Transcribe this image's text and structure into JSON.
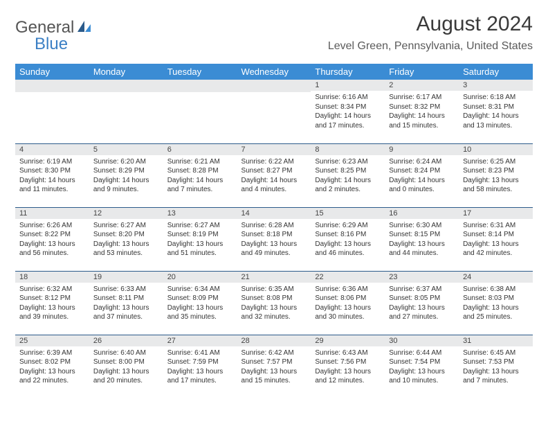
{
  "logo": {
    "general": "General",
    "blue": "Blue"
  },
  "title": "August 2024",
  "location": "Level Green, Pennsylvania, United States",
  "weekdays": [
    "Sunday",
    "Monday",
    "Tuesday",
    "Wednesday",
    "Thursday",
    "Friday",
    "Saturday"
  ],
  "colors": {
    "header_bg": "#3b8cd4",
    "header_text": "#ffffff",
    "daynum_bg": "#e8e9ea",
    "border": "#2a5a8a",
    "brand_blue": "#3b7fc4"
  },
  "weeks": [
    [
      null,
      null,
      null,
      null,
      {
        "n": "1",
        "sr": "Sunrise: 6:16 AM",
        "ss": "Sunset: 8:34 PM",
        "dl1": "Daylight: 14 hours",
        "dl2": "and 17 minutes."
      },
      {
        "n": "2",
        "sr": "Sunrise: 6:17 AM",
        "ss": "Sunset: 8:32 PM",
        "dl1": "Daylight: 14 hours",
        "dl2": "and 15 minutes."
      },
      {
        "n": "3",
        "sr": "Sunrise: 6:18 AM",
        "ss": "Sunset: 8:31 PM",
        "dl1": "Daylight: 14 hours",
        "dl2": "and 13 minutes."
      }
    ],
    [
      {
        "n": "4",
        "sr": "Sunrise: 6:19 AM",
        "ss": "Sunset: 8:30 PM",
        "dl1": "Daylight: 14 hours",
        "dl2": "and 11 minutes."
      },
      {
        "n": "5",
        "sr": "Sunrise: 6:20 AM",
        "ss": "Sunset: 8:29 PM",
        "dl1": "Daylight: 14 hours",
        "dl2": "and 9 minutes."
      },
      {
        "n": "6",
        "sr": "Sunrise: 6:21 AM",
        "ss": "Sunset: 8:28 PM",
        "dl1": "Daylight: 14 hours",
        "dl2": "and 7 minutes."
      },
      {
        "n": "7",
        "sr": "Sunrise: 6:22 AM",
        "ss": "Sunset: 8:27 PM",
        "dl1": "Daylight: 14 hours",
        "dl2": "and 4 minutes."
      },
      {
        "n": "8",
        "sr": "Sunrise: 6:23 AM",
        "ss": "Sunset: 8:25 PM",
        "dl1": "Daylight: 14 hours",
        "dl2": "and 2 minutes."
      },
      {
        "n": "9",
        "sr": "Sunrise: 6:24 AM",
        "ss": "Sunset: 8:24 PM",
        "dl1": "Daylight: 14 hours",
        "dl2": "and 0 minutes."
      },
      {
        "n": "10",
        "sr": "Sunrise: 6:25 AM",
        "ss": "Sunset: 8:23 PM",
        "dl1": "Daylight: 13 hours",
        "dl2": "and 58 minutes."
      }
    ],
    [
      {
        "n": "11",
        "sr": "Sunrise: 6:26 AM",
        "ss": "Sunset: 8:22 PM",
        "dl1": "Daylight: 13 hours",
        "dl2": "and 56 minutes."
      },
      {
        "n": "12",
        "sr": "Sunrise: 6:27 AM",
        "ss": "Sunset: 8:20 PM",
        "dl1": "Daylight: 13 hours",
        "dl2": "and 53 minutes."
      },
      {
        "n": "13",
        "sr": "Sunrise: 6:27 AM",
        "ss": "Sunset: 8:19 PM",
        "dl1": "Daylight: 13 hours",
        "dl2": "and 51 minutes."
      },
      {
        "n": "14",
        "sr": "Sunrise: 6:28 AM",
        "ss": "Sunset: 8:18 PM",
        "dl1": "Daylight: 13 hours",
        "dl2": "and 49 minutes."
      },
      {
        "n": "15",
        "sr": "Sunrise: 6:29 AM",
        "ss": "Sunset: 8:16 PM",
        "dl1": "Daylight: 13 hours",
        "dl2": "and 46 minutes."
      },
      {
        "n": "16",
        "sr": "Sunrise: 6:30 AM",
        "ss": "Sunset: 8:15 PM",
        "dl1": "Daylight: 13 hours",
        "dl2": "and 44 minutes."
      },
      {
        "n": "17",
        "sr": "Sunrise: 6:31 AM",
        "ss": "Sunset: 8:14 PM",
        "dl1": "Daylight: 13 hours",
        "dl2": "and 42 minutes."
      }
    ],
    [
      {
        "n": "18",
        "sr": "Sunrise: 6:32 AM",
        "ss": "Sunset: 8:12 PM",
        "dl1": "Daylight: 13 hours",
        "dl2": "and 39 minutes."
      },
      {
        "n": "19",
        "sr": "Sunrise: 6:33 AM",
        "ss": "Sunset: 8:11 PM",
        "dl1": "Daylight: 13 hours",
        "dl2": "and 37 minutes."
      },
      {
        "n": "20",
        "sr": "Sunrise: 6:34 AM",
        "ss": "Sunset: 8:09 PM",
        "dl1": "Daylight: 13 hours",
        "dl2": "and 35 minutes."
      },
      {
        "n": "21",
        "sr": "Sunrise: 6:35 AM",
        "ss": "Sunset: 8:08 PM",
        "dl1": "Daylight: 13 hours",
        "dl2": "and 32 minutes."
      },
      {
        "n": "22",
        "sr": "Sunrise: 6:36 AM",
        "ss": "Sunset: 8:06 PM",
        "dl1": "Daylight: 13 hours",
        "dl2": "and 30 minutes."
      },
      {
        "n": "23",
        "sr": "Sunrise: 6:37 AM",
        "ss": "Sunset: 8:05 PM",
        "dl1": "Daylight: 13 hours",
        "dl2": "and 27 minutes."
      },
      {
        "n": "24",
        "sr": "Sunrise: 6:38 AM",
        "ss": "Sunset: 8:03 PM",
        "dl1": "Daylight: 13 hours",
        "dl2": "and 25 minutes."
      }
    ],
    [
      {
        "n": "25",
        "sr": "Sunrise: 6:39 AM",
        "ss": "Sunset: 8:02 PM",
        "dl1": "Daylight: 13 hours",
        "dl2": "and 22 minutes."
      },
      {
        "n": "26",
        "sr": "Sunrise: 6:40 AM",
        "ss": "Sunset: 8:00 PM",
        "dl1": "Daylight: 13 hours",
        "dl2": "and 20 minutes."
      },
      {
        "n": "27",
        "sr": "Sunrise: 6:41 AM",
        "ss": "Sunset: 7:59 PM",
        "dl1": "Daylight: 13 hours",
        "dl2": "and 17 minutes."
      },
      {
        "n": "28",
        "sr": "Sunrise: 6:42 AM",
        "ss": "Sunset: 7:57 PM",
        "dl1": "Daylight: 13 hours",
        "dl2": "and 15 minutes."
      },
      {
        "n": "29",
        "sr": "Sunrise: 6:43 AM",
        "ss": "Sunset: 7:56 PM",
        "dl1": "Daylight: 13 hours",
        "dl2": "and 12 minutes."
      },
      {
        "n": "30",
        "sr": "Sunrise: 6:44 AM",
        "ss": "Sunset: 7:54 PM",
        "dl1": "Daylight: 13 hours",
        "dl2": "and 10 minutes."
      },
      {
        "n": "31",
        "sr": "Sunrise: 6:45 AM",
        "ss": "Sunset: 7:53 PM",
        "dl1": "Daylight: 13 hours",
        "dl2": "and 7 minutes."
      }
    ]
  ]
}
